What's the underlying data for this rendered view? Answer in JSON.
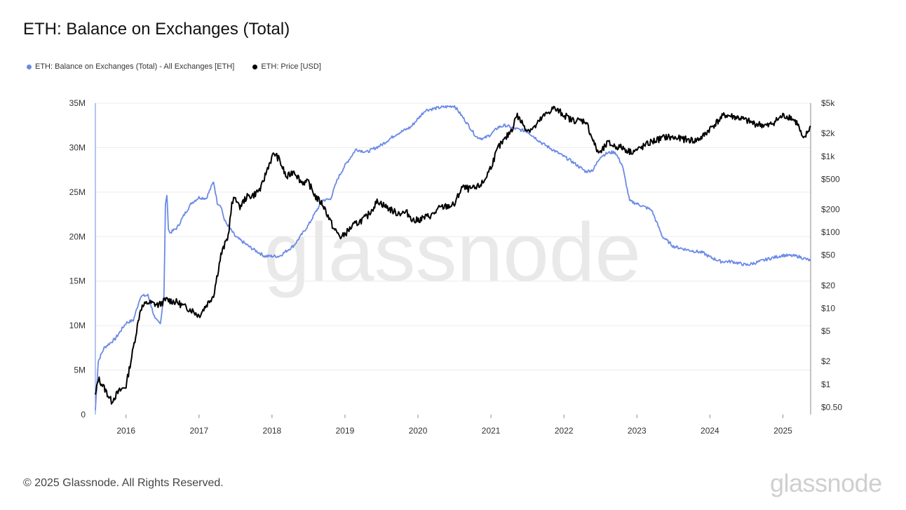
{
  "title": "ETH: Balance on Exchanges (Total)",
  "footer": "© 2025 Glassnode. All Rights Reserved.",
  "watermark": "glassnode",
  "logo_text": "glassnode",
  "colors": {
    "balance": "#6b8ae6",
    "price": "#000000",
    "grid": "#ececec",
    "axis": "#8a8a8a"
  },
  "chart_data": {
    "type": "line",
    "title": "ETH: Balance on Exchanges (Total)",
    "x_range": [
      2015.58,
      2025.38
    ],
    "x_ticks": [
      2016,
      2017,
      2018,
      2019,
      2020,
      2021,
      2022,
      2023,
      2024,
      2025
    ],
    "x_tick_labels": [
      "2016",
      "2017",
      "2018",
      "2019",
      "2020",
      "2021",
      "2022",
      "2023",
      "2024",
      "2025"
    ],
    "y_left": {
      "range": [
        0,
        35000000
      ],
      "ticks": [
        0,
        5000000,
        10000000,
        15000000,
        20000000,
        25000000,
        30000000,
        35000000
      ],
      "tick_labels": [
        "0",
        "5M",
        "10M",
        "15M",
        "20M",
        "25M",
        "30M",
        "35M"
      ]
    },
    "y_right": {
      "scale": "log",
      "range": [
        0.4,
        5000
      ],
      "ticks": [
        0.5,
        1,
        2,
        5,
        10,
        20,
        50,
        100,
        200,
        500,
        1000,
        2000,
        5000
      ],
      "tick_labels": [
        "$0.50",
        "$1",
        "$2",
        "$5",
        "$10",
        "$20",
        "$50",
        "$100",
        "$200",
        "$500",
        "$1k",
        "$2k",
        "$5k"
      ]
    },
    "series": [
      {
        "name": "ETH: Balance on Exchanges (Total) - All Exchanges [ETH]",
        "axis": "left",
        "x": [
          2015.58,
          2015.62,
          2015.7,
          2015.85,
          2016.0,
          2016.1,
          2016.2,
          2016.3,
          2016.4,
          2016.47,
          2016.52,
          2016.54,
          2016.56,
          2016.58,
          2016.6,
          2016.7,
          2016.8,
          2016.9,
          2017.0,
          2017.1,
          2017.2,
          2017.25,
          2017.3,
          2017.35,
          2017.5,
          2017.7,
          2017.9,
          2018.1,
          2018.3,
          2018.5,
          2018.6,
          2018.7,
          2018.8,
          2018.9,
          2019.0,
          2019.15,
          2019.3,
          2019.5,
          2019.7,
          2019.9,
          2020.1,
          2020.3,
          2020.5,
          2020.65,
          2020.8,
          2020.9,
          2021.0,
          2021.1,
          2021.2,
          2021.3,
          2021.5,
          2021.7,
          2021.9,
          2022.1,
          2022.3,
          2022.4,
          2022.5,
          2022.6,
          2022.7,
          2022.8,
          2022.9,
          2023.0,
          2023.2,
          2023.35,
          2023.5,
          2023.7,
          2023.9,
          2024.0,
          2024.15,
          2024.3,
          2024.5,
          2024.6,
          2024.8,
          2025.0,
          2025.2,
          2025.38
        ],
        "values": [
          500000,
          6000000,
          7500000,
          8500000,
          10300000,
          10600000,
          13300000,
          13400000,
          10700000,
          10200000,
          13500000,
          23500000,
          24700000,
          21000000,
          20400000,
          21000000,
          22500000,
          23800000,
          24400000,
          24300000,
          26200000,
          23800000,
          23500000,
          21800000,
          20000000,
          18800000,
          17800000,
          17800000,
          19000000,
          21300000,
          22800000,
          24100000,
          24200000,
          26500000,
          28000000,
          29800000,
          29500000,
          30300000,
          31500000,
          32300000,
          34200000,
          34500000,
          34700000,
          33000000,
          31200000,
          31000000,
          31500000,
          32300000,
          32500000,
          32200000,
          31800000,
          30500000,
          29500000,
          28500000,
          27300000,
          27500000,
          29000000,
          29400000,
          29500000,
          28000000,
          24000000,
          23700000,
          23000000,
          20000000,
          18900000,
          18500000,
          18200000,
          17700000,
          17200000,
          17200000,
          16800000,
          17000000,
          17500000,
          17900000,
          17800000,
          17300000
        ]
      },
      {
        "name": "ETH: Price [USD]",
        "axis": "right",
        "x": [
          2015.58,
          2015.62,
          2015.7,
          2015.8,
          2015.9,
          2016.0,
          2016.1,
          2016.2,
          2016.3,
          2016.45,
          2016.5,
          2016.55,
          2016.7,
          2016.8,
          2016.9,
          2017.0,
          2017.1,
          2017.2,
          2017.3,
          2017.4,
          2017.45,
          2017.5,
          2017.55,
          2017.65,
          2017.75,
          2017.85,
          2017.95,
          2018.03,
          2018.1,
          2018.2,
          2018.3,
          2018.4,
          2018.5,
          2018.6,
          2018.7,
          2018.85,
          2018.95,
          2019.1,
          2019.3,
          2019.45,
          2019.55,
          2019.7,
          2019.85,
          2019.95,
          2020.2,
          2020.3,
          2020.5,
          2020.6,
          2020.7,
          2020.8,
          2020.9,
          2021.0,
          2021.1,
          2021.2,
          2021.3,
          2021.35,
          2021.5,
          2021.6,
          2021.7,
          2021.85,
          2021.95,
          2022.1,
          2022.3,
          2022.45,
          2022.5,
          2022.6,
          2022.7,
          2022.8,
          2022.9,
          2023.0,
          2023.2,
          2023.4,
          2023.6,
          2023.8,
          2023.9,
          2024.0,
          2024.2,
          2024.4,
          2024.6,
          2024.8,
          2025.0,
          2025.1,
          2025.2,
          2025.28,
          2025.38
        ],
        "values": [
          0.7,
          1.2,
          0.9,
          0.6,
          0.8,
          0.95,
          3,
          10,
          12,
          11,
          12,
          13,
          12,
          10.5,
          9.5,
          8,
          11,
          15,
          50,
          90,
          230,
          300,
          210,
          290,
          310,
          380,
          750,
          1100,
          900,
          520,
          650,
          460,
          450,
          290,
          230,
          110,
          85,
          120,
          160,
          260,
          220,
          180,
          180,
          140,
          170,
          210,
          230,
          390,
          370,
          380,
          460,
          730,
          1300,
          1700,
          2400,
          3500,
          2200,
          2400,
          3200,
          4300,
          3800,
          3000,
          2900,
          1200,
          1100,
          1500,
          1350,
          1300,
          1150,
          1200,
          1550,
          1800,
          1700,
          1600,
          1800,
          2300,
          3500,
          3200,
          2700,
          2500,
          3400,
          3300,
          2700,
          1600,
          2500
        ]
      }
    ]
  }
}
